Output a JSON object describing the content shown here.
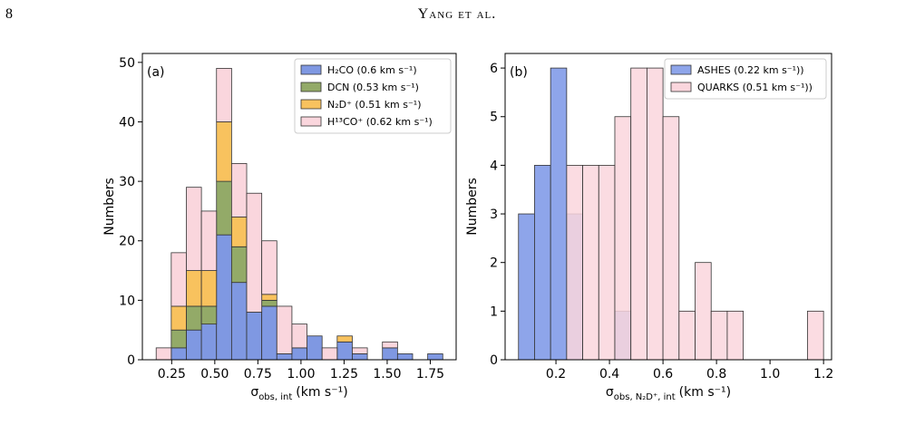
{
  "page_header": {
    "page_number": "8",
    "running_title": "Yang et al."
  },
  "chart_data": [
    {
      "type": "histogram",
      "stacked": true,
      "panel_label": "(a)",
      "xlabel": {
        "symbol": "σ",
        "subscript": "obs, int",
        "unit": "(km s⁻¹)"
      },
      "ylabel": "Numbers",
      "legend": "upper right",
      "xlim": [
        0.08,
        1.9
      ],
      "ylim": [
        0,
        51.5
      ],
      "xticks": [
        0.25,
        {
          "value": 0.5,
          "label": "0.50"
        },
        {
          "value": 0.75,
          "label": "0.75"
        },
        {
          "value": 1,
          "label": "1.00"
        },
        1.25,
        {
          "value": 1.5,
          "label": "1.50"
        },
        1.75
      ],
      "yticks": [
        0,
        10,
        20,
        30,
        40,
        50
      ],
      "bins": [
        0.16,
        0.2475,
        0.335,
        0.4225,
        0.51,
        0.5975,
        0.685,
        0.7725,
        0.86,
        0.9475,
        1.035,
        1.1225,
        1.21,
        1.2975,
        1.385,
        1.4725,
        1.56,
        1.6475,
        1.735,
        1.8225
      ],
      "series": [
        {
          "name": "H₂CO (0.6 km s⁻¹)",
          "color": "#7f98e2",
          "values": [
            0,
            2,
            5,
            6,
            21,
            13,
            8,
            9,
            1,
            2,
            4,
            0,
            3,
            1,
            0,
            2,
            1,
            0,
            1
          ]
        },
        {
          "name": "DCN (0.53 km s⁻¹)",
          "color": "#93aa68",
          "values": [
            0,
            3,
            4,
            3,
            9,
            6,
            0,
            1,
            0,
            0,
            0,
            0,
            0,
            0,
            0,
            0,
            0,
            0,
            0
          ]
        },
        {
          "name": "N₂D⁺ (0.51 km s⁻¹)",
          "color": "#f8c25e",
          "values": [
            0,
            4,
            6,
            6,
            10,
            5,
            0,
            1,
            0,
            0,
            0,
            0,
            1,
            0,
            0,
            0,
            0,
            0,
            0
          ]
        },
        {
          "name": "H¹³CO⁺ (0.62 km s⁻¹)",
          "color": "#fad6dd",
          "values": [
            2,
            9,
            14,
            10,
            9,
            9,
            20,
            9,
            8,
            4,
            0,
            2,
            0,
            1,
            0,
            1,
            0,
            0,
            0
          ]
        }
      ]
    },
    {
      "type": "histogram",
      "stacked": false,
      "panel_label": "(b)",
      "xlabel": {
        "symbol": "σ",
        "subscript": "obs, N₂D⁺, int",
        "unit": "(km s⁻¹)"
      },
      "ylabel": "Numbers",
      "legend": "upper right",
      "xlim": [
        0.01,
        1.23
      ],
      "ylim": [
        0,
        6.3
      ],
      "xticks": [
        0.2,
        0.4,
        0.6,
        0.8,
        {
          "value": 1,
          "label": "1.0"
        },
        1.2
      ],
      "yticks": [
        0,
        1,
        2,
        3,
        4,
        5,
        6
      ],
      "series": [
        {
          "name": "ASHES (0.22 km s⁻¹))",
          "color": "#8ea5ea",
          "bins": [
            0.06,
            0.12,
            0.18,
            0.24,
            0.3,
            0.36,
            0.42,
            0.48
          ],
          "values": [
            3,
            4,
            6,
            3,
            0,
            0,
            1
          ]
        },
        {
          "name": "QUARKS (0.51 km s⁻¹))",
          "color": "#fad6dd",
          "bins": [
            0.24,
            0.3,
            0.36,
            0.42,
            0.48,
            0.54,
            0.6,
            0.66,
            0.72,
            0.78,
            0.84,
            0.9,
            0.96,
            1.02,
            1.08,
            1.14,
            1.2
          ],
          "values": [
            4,
            4,
            4,
            5,
            6,
            6,
            5,
            1,
            2,
            1,
            1,
            0,
            0,
            0,
            0,
            1
          ]
        }
      ]
    }
  ]
}
